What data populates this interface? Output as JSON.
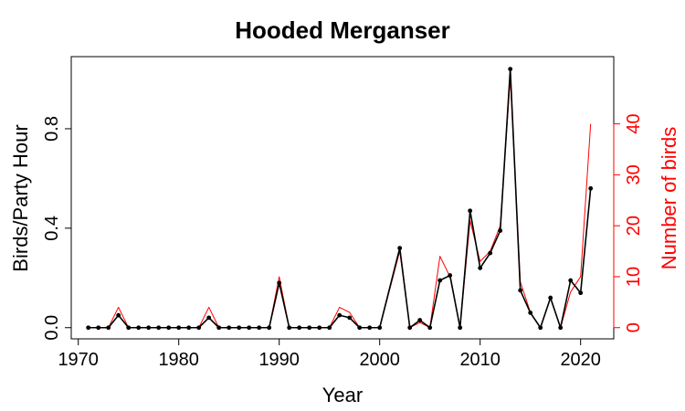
{
  "chart_data": {
    "type": "line",
    "title": "Hooded Merganser",
    "xlabel": "Year",
    "ylabel": "Birds/Party Hour",
    "y2label": "Number of birds",
    "xlim": [
      1969.3,
      2023.3
    ],
    "ylim": [
      -0.045,
      1.09
    ],
    "y2lim": [
      -2.2,
      53.2
    ],
    "x_ticks": [
      1970,
      1980,
      1990,
      2000,
      2010,
      2020
    ],
    "y_ticks": [
      0.0,
      0.4,
      0.8
    ],
    "y_tick_labels": [
      "0.0",
      "0.4",
      "0.8"
    ],
    "y2_ticks": [
      0,
      10,
      20,
      30,
      40
    ],
    "grid": false,
    "colors": {
      "primary": "#000000",
      "secondary": "#ff0000"
    },
    "x": [
      1971,
      1972,
      1973,
      1974,
      1975,
      1976,
      1977,
      1978,
      1979,
      1980,
      1981,
      1982,
      1983,
      1984,
      1985,
      1986,
      1987,
      1988,
      1989,
      1990,
      1991,
      1992,
      1993,
      1994,
      1995,
      1996,
      1997,
      1998,
      1999,
      2000,
      2002,
      2003,
      2004,
      2005,
      2006,
      2007,
      2008,
      2009,
      2010,
      2011,
      2012,
      2013,
      2014,
      2015,
      2016,
      2017,
      2018,
      2019,
      2020,
      2021
    ],
    "series": [
      {
        "name": "Birds/Party Hour",
        "axis": "left",
        "color": "#000000",
        "markers": true,
        "values": [
          0,
          0,
          0,
          0.05,
          0,
          0,
          0,
          0,
          0,
          0,
          0,
          0,
          0.04,
          0,
          0,
          0,
          0,
          0,
          0,
          0.18,
          0,
          0,
          0,
          0,
          0,
          0.05,
          0.04,
          0,
          0,
          0,
          0.32,
          0,
          0.03,
          0,
          0.19,
          0.21,
          0,
          0.47,
          0.24,
          0.3,
          0.39,
          1.04,
          0.15,
          0.06,
          0,
          0.12,
          0,
          0.19,
          0.14,
          0.56
        ]
      },
      {
        "name": "Number of birds",
        "axis": "right",
        "color": "#ff0000",
        "markers": false,
        "values": [
          0,
          0,
          0,
          4,
          0,
          0,
          0,
          0,
          0,
          0,
          0,
          0,
          4,
          0,
          0,
          0,
          0,
          0,
          0,
          10,
          0,
          0,
          0,
          0,
          0,
          4,
          3,
          0,
          0,
          0,
          15,
          0,
          1,
          0,
          14,
          10,
          0,
          21,
          13,
          15,
          20,
          49,
          9,
          3,
          0,
          6,
          0,
          7,
          10,
          40
        ]
      }
    ]
  }
}
